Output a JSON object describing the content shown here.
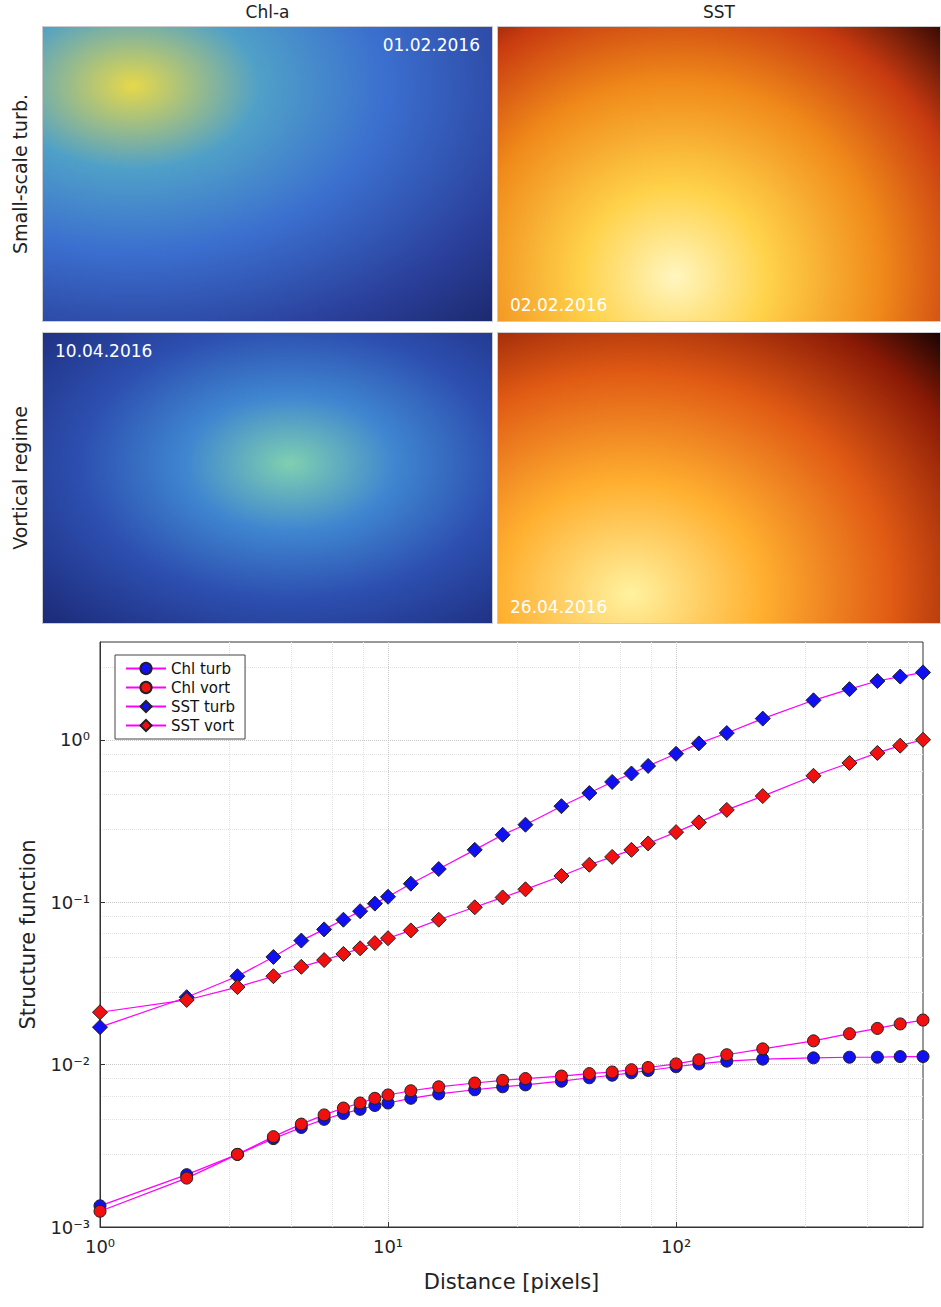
{
  "panels": {
    "columns": [
      "Chl-a",
      "SST"
    ],
    "rows": [
      "Small-scale turb.",
      "Vortical regime"
    ],
    "dates": [
      [
        "01.02.2016",
        "02.02.2016"
      ],
      [
        "10.04.2016",
        "26.04.2016"
      ]
    ]
  },
  "chart_data": {
    "type": "line",
    "xlabel": "Distance [pixels]",
    "ylabel": "Structure function",
    "log": true,
    "grid": true,
    "legend": "top-left",
    "x": [
      1,
      2,
      3,
      4,
      5,
      6,
      7,
      8,
      9,
      10,
      12,
      15,
      20,
      25,
      30,
      40,
      50,
      60,
      70,
      80,
      100,
      120,
      150,
      200,
      300,
      400,
      500,
      600,
      720
    ],
    "xlim": [
      1,
      720
    ],
    "xticks": [
      {
        "value": 1,
        "label": "10⁰"
      },
      {
        "value": 10,
        "label": "10¹"
      },
      {
        "value": 100,
        "label": "10²"
      }
    ],
    "ylim": [
      0.001,
      4
    ],
    "yticks": [
      {
        "value": 0.001,
        "label": "10⁻³"
      },
      {
        "value": 0.01,
        "label": "10⁻²"
      },
      {
        "value": 0.1,
        "label": "10⁻¹"
      },
      {
        "value": 1,
        "label": "10⁰"
      }
    ],
    "series": [
      {
        "name": "Chl turb",
        "color": "#1010f0",
        "marker": "circle",
        "values": [
          0.00135,
          0.0021,
          0.0028,
          0.0035,
          0.0041,
          0.0046,
          0.005,
          0.0053,
          0.0056,
          0.0058,
          0.0062,
          0.0066,
          0.007,
          0.0073,
          0.0075,
          0.0079,
          0.0083,
          0.0086,
          0.0089,
          0.0092,
          0.0097,
          0.0101,
          0.0105,
          0.0108,
          0.011,
          0.0111,
          0.0111,
          0.0112,
          0.0112
        ]
      },
      {
        "name": "Chl vort",
        "color": "#f01010",
        "marker": "circle",
        "values": [
          0.00125,
          0.002,
          0.0028,
          0.0036,
          0.0043,
          0.0049,
          0.0054,
          0.0058,
          0.0062,
          0.0065,
          0.0069,
          0.0073,
          0.0077,
          0.008,
          0.0082,
          0.0085,
          0.0088,
          0.009,
          0.0093,
          0.0096,
          0.0101,
          0.0107,
          0.0115,
          0.0125,
          0.014,
          0.0155,
          0.0167,
          0.0178,
          0.0188
        ]
      },
      {
        "name": "SST turb",
        "color": "#1010f0",
        "marker": "diamond",
        "values": [
          0.017,
          0.026,
          0.035,
          0.046,
          0.058,
          0.068,
          0.078,
          0.088,
          0.098,
          0.108,
          0.13,
          0.16,
          0.21,
          0.26,
          0.3,
          0.39,
          0.47,
          0.55,
          0.62,
          0.69,
          0.82,
          0.95,
          1.1,
          1.35,
          1.75,
          2.05,
          2.3,
          2.45,
          2.6
        ]
      },
      {
        "name": "SST vort",
        "color": "#f01010",
        "marker": "diamond",
        "values": [
          0.021,
          0.025,
          0.03,
          0.035,
          0.04,
          0.044,
          0.048,
          0.052,
          0.056,
          0.06,
          0.067,
          0.078,
          0.093,
          0.107,
          0.12,
          0.145,
          0.17,
          0.19,
          0.21,
          0.23,
          0.27,
          0.31,
          0.37,
          0.45,
          0.6,
          0.72,
          0.83,
          0.92,
          1.0
        ]
      }
    ]
  }
}
